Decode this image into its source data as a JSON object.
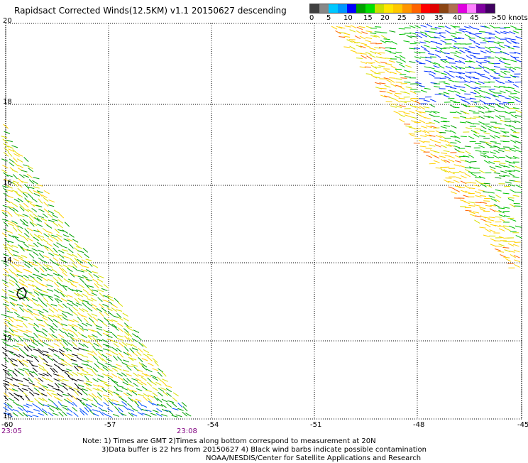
{
  "title": "Rapidsact Corrected Winds(12.5KM) v1.1 20150627 descending",
  "legend": {
    "labels": [
      "0",
      "5",
      "10",
      "15",
      "20",
      "25",
      "30",
      "35",
      "40",
      "45",
      ">50 knots"
    ],
    "colors": [
      "#404040",
      "#888888",
      "#00c8ff",
      "#0096ff",
      "#0000ff",
      "#00a000",
      "#00e000",
      "#c8e000",
      "#ffe600",
      "#ffc800",
      "#ff9600",
      "#ff6400",
      "#ff0000",
      "#e00000",
      "#8b4513",
      "#b07050",
      "#e000e0",
      "#ff80ff",
      "#8000a0",
      "#400060"
    ]
  },
  "axes": {
    "y_labels": [
      "20",
      "18",
      "16",
      "14",
      "12",
      "10"
    ],
    "x_labels": [
      "-60",
      "-57",
      "-54",
      "-51",
      "-48",
      "-45"
    ]
  },
  "times": {
    "left": "23:05",
    "right": "23:08"
  },
  "notes": {
    "line1": "Note: 1) Times are GMT 2)Times along bottom correspond to measurement at 20N",
    "line2": "3)Data buffer is 22 hrs from 20150627 4) Black wind barbs indicate possible contamination",
    "line3": "NOAA/NESDIS/Center for Satellite Applications and Research"
  }
}
